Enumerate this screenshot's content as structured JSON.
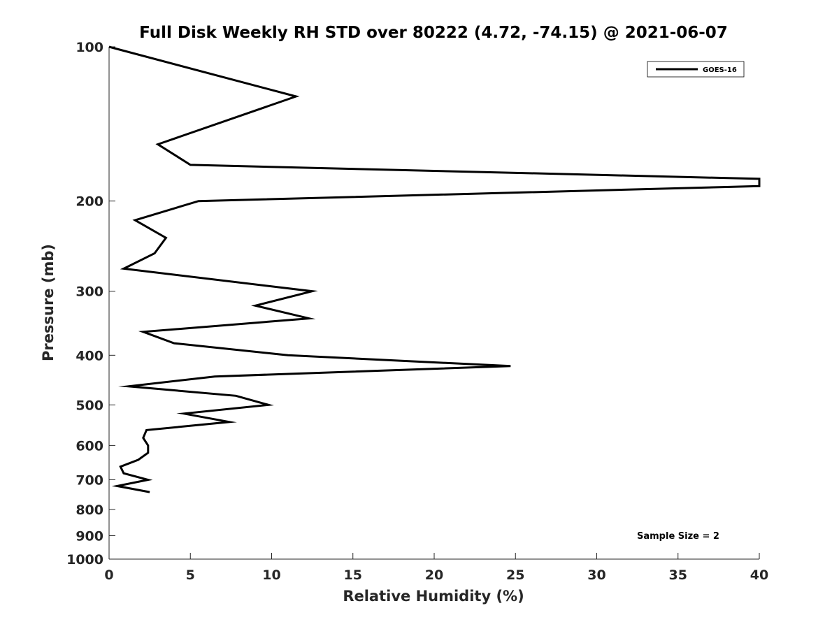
{
  "chart_data": {
    "type": "line",
    "title": "Full Disk Weekly RH STD over 80222 (4.72, -74.15) @ 2021-06-07",
    "xlabel": "Relative Humidity (%)",
    "ylabel": "Pressure (mb)",
    "xlim": [
      0,
      40
    ],
    "ylim": [
      100,
      1000
    ],
    "y_scale": "log",
    "y_reversed": true,
    "xticks": [
      0,
      5,
      10,
      15,
      20,
      25,
      30,
      35,
      40
    ],
    "yticks": [
      100,
      200,
      300,
      400,
      500,
      600,
      700,
      800,
      900,
      1000
    ],
    "grid": false,
    "legend_position": "top-right",
    "annotation": "Sample Size = 2",
    "series": [
      {
        "name": "GOES-16",
        "color": "#000000",
        "points": [
          [
            0.0,
            100
          ],
          [
            11.5,
            125
          ],
          [
            3.0,
            155
          ],
          [
            5.0,
            170
          ],
          [
            40.0,
            181
          ],
          [
            40.0,
            187
          ],
          [
            5.5,
            200
          ],
          [
            1.6,
            218
          ],
          [
            3.5,
            236
          ],
          [
            2.8,
            253
          ],
          [
            0.9,
            271
          ],
          [
            12.5,
            300
          ],
          [
            9.0,
            320
          ],
          [
            12.3,
            339
          ],
          [
            2.1,
            360
          ],
          [
            4.0,
            379
          ],
          [
            11.0,
            400
          ],
          [
            24.7,
            420
          ],
          [
            6.5,
            440
          ],
          [
            1.2,
            460
          ],
          [
            7.8,
            480
          ],
          [
            9.8,
            500
          ],
          [
            4.6,
            520
          ],
          [
            7.4,
            540
          ],
          [
            2.3,
            560
          ],
          [
            2.1,
            580
          ],
          [
            2.4,
            600
          ],
          [
            2.4,
            620
          ],
          [
            1.8,
            640
          ],
          [
            0.7,
            660
          ],
          [
            0.9,
            680
          ],
          [
            2.4,
            700
          ],
          [
            0.5,
            720
          ],
          [
            2.5,
            740
          ]
        ]
      }
    ]
  }
}
